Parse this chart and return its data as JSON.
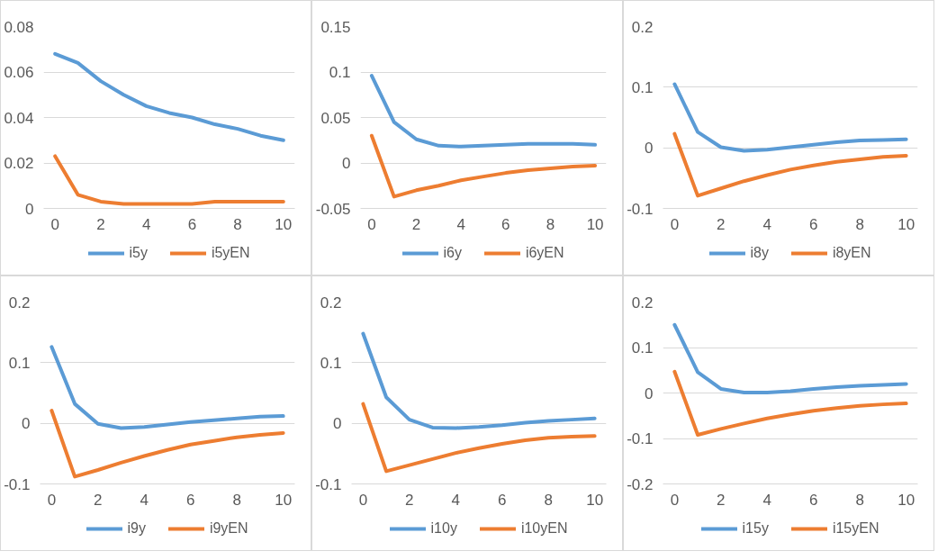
{
  "chart_data": [
    {
      "type": "line",
      "x": [
        0,
        1,
        2,
        3,
        4,
        5,
        6,
        7,
        8,
        9,
        10
      ],
      "xlim": [
        -0.5,
        10.5
      ],
      "xticks": [
        0,
        2,
        4,
        6,
        8,
        10
      ],
      "ylim": [
        0,
        0.08
      ],
      "yticks": [
        0,
        0.02,
        0.04,
        0.06,
        0.08
      ],
      "grid": "y",
      "legend": "bottom",
      "series": [
        {
          "name": "i5y",
          "color": "#5b9bd5",
          "values": [
            0.068,
            0.064,
            0.056,
            0.05,
            0.045,
            0.042,
            0.04,
            0.037,
            0.035,
            0.032,
            0.03
          ]
        },
        {
          "name": "i5yEN",
          "color": "#ed7d31",
          "values": [
            0.023,
            0.006,
            0.003,
            0.002,
            0.002,
            0.002,
            0.002,
            0.003,
            0.003,
            0.003,
            0.003
          ]
        }
      ]
    },
    {
      "type": "line",
      "x": [
        0,
        1,
        2,
        3,
        4,
        5,
        6,
        7,
        8,
        9,
        10
      ],
      "xlim": [
        -0.5,
        10.5
      ],
      "xticks": [
        0,
        2,
        4,
        6,
        8,
        10
      ],
      "ylim": [
        -0.05,
        0.15
      ],
      "yticks": [
        -0.05,
        0,
        0.05,
        0.1,
        0.15
      ],
      "grid": "y",
      "legend": "bottom",
      "series": [
        {
          "name": "i6y",
          "color": "#5b9bd5",
          "values": [
            0.096,
            0.045,
            0.026,
            0.019,
            0.018,
            0.019,
            0.02,
            0.021,
            0.021,
            0.021,
            0.02
          ]
        },
        {
          "name": "i6yEN",
          "color": "#ed7d31",
          "values": [
            0.03,
            -0.037,
            -0.03,
            -0.025,
            -0.019,
            -0.015,
            -0.011,
            -0.008,
            -0.006,
            -0.004,
            -0.003
          ]
        }
      ]
    },
    {
      "type": "line",
      "x": [
        0,
        1,
        2,
        3,
        4,
        5,
        6,
        7,
        8,
        9,
        10
      ],
      "xlim": [
        -0.5,
        10.5
      ],
      "xticks": [
        0,
        2,
        4,
        6,
        8,
        10
      ],
      "ylim": [
        -0.1,
        0.2
      ],
      "yticks": [
        -0.1,
        0,
        0.1,
        0.2
      ],
      "grid": "y",
      "legend": "bottom",
      "series": [
        {
          "name": "i8y",
          "color": "#5b9bd5",
          "values": [
            0.105,
            0.026,
            0.001,
            -0.005,
            -0.003,
            0.001,
            0.005,
            0.009,
            0.012,
            0.013,
            0.014
          ]
        },
        {
          "name": "i8yEN",
          "color": "#ed7d31",
          "values": [
            0.023,
            -0.079,
            -0.067,
            -0.055,
            -0.045,
            -0.036,
            -0.029,
            -0.023,
            -0.019,
            -0.015,
            -0.013
          ]
        }
      ]
    },
    {
      "type": "line",
      "x": [
        0,
        1,
        2,
        3,
        4,
        5,
        6,
        7,
        8,
        9,
        10
      ],
      "xlim": [
        -0.5,
        10.5
      ],
      "xticks": [
        0,
        2,
        4,
        6,
        8,
        10
      ],
      "ylim": [
        -0.1,
        0.2
      ],
      "yticks": [
        -0.1,
        0,
        0.1,
        0.2
      ],
      "grid": "y",
      "legend": "bottom",
      "series": [
        {
          "name": "i9y",
          "color": "#5b9bd5",
          "values": [
            0.126,
            0.032,
            -0.001,
            -0.008,
            -0.006,
            -0.002,
            0.002,
            0.005,
            0.008,
            0.011,
            0.012
          ]
        },
        {
          "name": "i9yEN",
          "color": "#ed7d31",
          "values": [
            0.021,
            -0.088,
            -0.077,
            -0.065,
            -0.054,
            -0.044,
            -0.035,
            -0.029,
            -0.023,
            -0.019,
            -0.016
          ]
        }
      ]
    },
    {
      "type": "line",
      "x": [
        0,
        1,
        2,
        3,
        4,
        5,
        6,
        7,
        8,
        9,
        10
      ],
      "xlim": [
        -0.5,
        10.5
      ],
      "xticks": [
        0,
        2,
        4,
        6,
        8,
        10
      ],
      "ylim": [
        -0.1,
        0.2
      ],
      "yticks": [
        -0.1,
        0,
        0.1,
        0.2
      ],
      "grid": "y",
      "legend": "bottom",
      "series": [
        {
          "name": "i10y",
          "color": "#5b9bd5",
          "values": [
            0.148,
            0.043,
            0.006,
            -0.007,
            -0.008,
            -0.006,
            -0.003,
            0.001,
            0.004,
            0.006,
            0.008
          ]
        },
        {
          "name": "i10yEN",
          "color": "#ed7d31",
          "values": [
            0.032,
            -0.079,
            -0.069,
            -0.059,
            -0.049,
            -0.041,
            -0.034,
            -0.028,
            -0.024,
            -0.022,
            -0.021
          ]
        }
      ]
    },
    {
      "type": "line",
      "x": [
        0,
        1,
        2,
        3,
        4,
        5,
        6,
        7,
        8,
        9,
        10
      ],
      "xlim": [
        -0.5,
        10.5
      ],
      "xticks": [
        0,
        2,
        4,
        6,
        8,
        10
      ],
      "ylim": [
        -0.2,
        0.2
      ],
      "yticks": [
        -0.2,
        -0.1,
        0,
        0.1,
        0.2
      ],
      "grid": "y",
      "legend": "bottom",
      "series": [
        {
          "name": "i15y",
          "color": "#5b9bd5",
          "values": [
            0.15,
            0.046,
            0.009,
            0.001,
            0.001,
            0.004,
            0.009,
            0.013,
            0.016,
            0.018,
            0.02
          ]
        },
        {
          "name": "i15yEN",
          "color": "#ed7d31",
          "values": [
            0.047,
            -0.092,
            -0.079,
            -0.067,
            -0.056,
            -0.047,
            -0.039,
            -0.033,
            -0.028,
            -0.025,
            -0.023
          ]
        }
      ]
    }
  ]
}
